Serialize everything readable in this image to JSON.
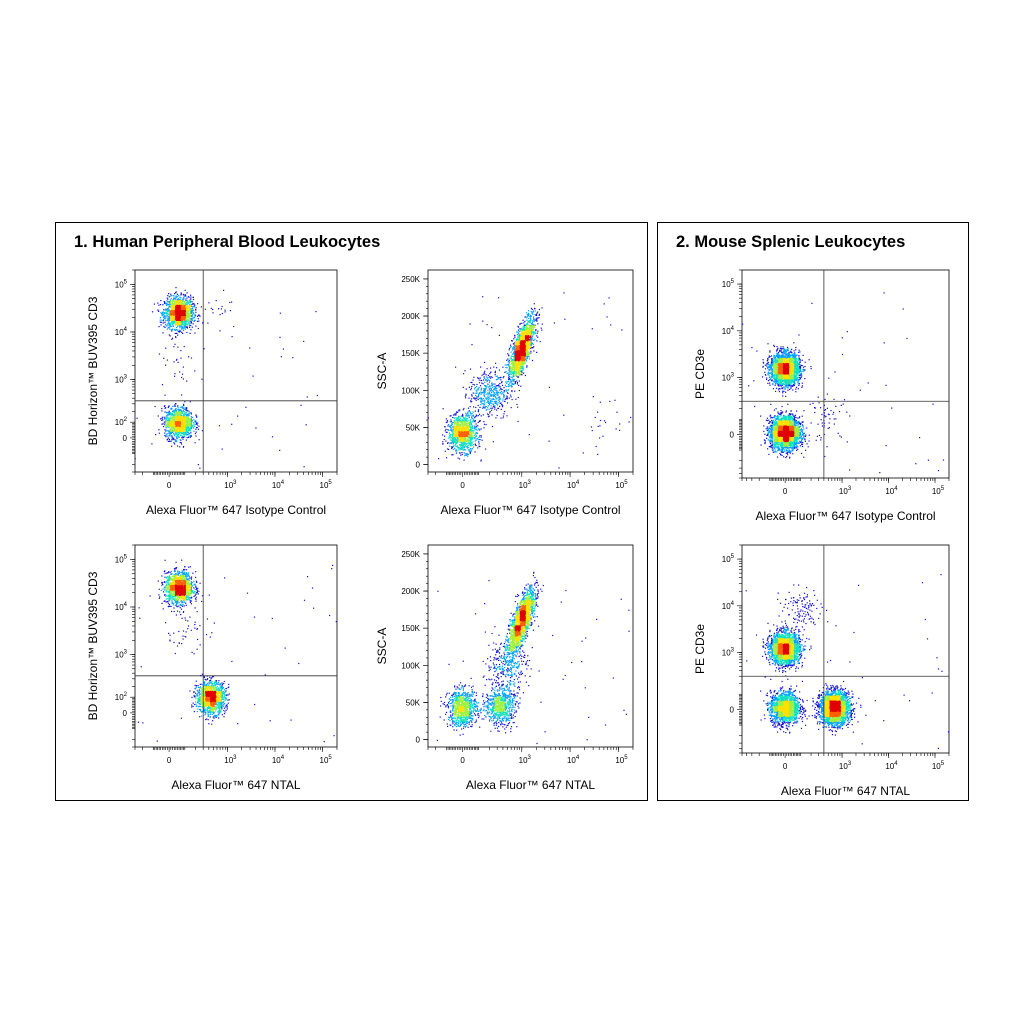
{
  "panels": [
    {
      "id": "panel1",
      "title": "1. Human Peripheral Blood Leukocytes"
    },
    {
      "id": "panel2",
      "title": "2. Mouse Splenic Leukocytes"
    }
  ],
  "palette": [
    "#1010d8",
    "#00a0ff",
    "#10e0c0",
    "#a0f040",
    "#ffe000",
    "#ff6000",
    "#e00000"
  ],
  "chart_data": [
    {
      "id": "p1a",
      "type": "scatter",
      "subtype": "density-dot-plot",
      "xlabel": "Alexa Fluor™ 647 Isotype Control",
      "ylabel": "BD Horizon™ BUV395 CD3",
      "x_scale": "biexponential",
      "y_scale": "biexponential",
      "x_ticks": [
        {
          "label": "0",
          "v": 0
        },
        {
          "label": "10",
          "sup": "3",
          "v": 1000
        },
        {
          "label": "10",
          "sup": "4",
          "v": 10000
        },
        {
          "label": "10",
          "sup": "5",
          "v": 100000
        }
      ],
      "y_ticks": [
        {
          "label": "0",
          "v": 0
        },
        {
          "label": "10",
          "sup": "2",
          "v": 100
        },
        {
          "label": "10",
          "sup": "3",
          "v": 1000
        },
        {
          "label": "10",
          "sup": "4",
          "v": 10000
        },
        {
          "label": "10",
          "sup": "5",
          "v": 100000
        }
      ],
      "xlim": [
        -300,
        200000
      ],
      "ylim": [
        -300,
        200000
      ],
      "gate": {
        "x": 300,
        "y": 350
      },
      "populations": [
        {
          "x": 60,
          "y": 25000,
          "n": 1600
        },
        {
          "x": 60,
          "y": 95,
          "n": 1200
        },
        {
          "x": 800,
          "y": 25000,
          "n": 20
        },
        {
          "x": 60,
          "y": 2000,
          "n": 25
        }
      ]
    },
    {
      "id": "p1b",
      "type": "scatter",
      "subtype": "density-dot-plot",
      "xlabel": "Alexa Fluor™ 647 Isotype Control",
      "ylabel": "SSC-A",
      "x_scale": "biexponential",
      "y_scale": "linear",
      "x_ticks": [
        {
          "label": "0",
          "v": 0
        },
        {
          "label": "10",
          "sup": "3",
          "v": 1000
        },
        {
          "label": "10",
          "sup": "4",
          "v": 10000
        },
        {
          "label": "10",
          "sup": "5",
          "v": 100000
        }
      ],
      "y_ticks": [
        {
          "label": "0",
          "v": 0
        },
        {
          "label": "50K",
          "v": 50000
        },
        {
          "label": "100K",
          "v": 100000
        },
        {
          "label": "150K",
          "v": 150000
        },
        {
          "label": "200K",
          "v": 200000
        },
        {
          "label": "250K",
          "v": 250000
        }
      ],
      "xlim": [
        -300,
        200000
      ],
      "ylim": [
        -10000,
        262000
      ],
      "populations": [
        {
          "x": 0,
          "y": 42000,
          "n": 1100
        },
        {
          "x": 1000,
          "y": 155000,
          "n": 1800
        },
        {
          "x": 200,
          "y": 95000,
          "n": 450
        },
        {
          "x": 50000,
          "y": 60000,
          "n": 20
        }
      ]
    },
    {
      "id": "p1c",
      "type": "scatter",
      "subtype": "density-dot-plot",
      "xlabel": "Alexa Fluor™ 647 NTAL",
      "ylabel": "BD Horizon™ BUV395 CD3",
      "x_scale": "biexponential",
      "y_scale": "biexponential",
      "x_ticks": [
        {
          "label": "0",
          "v": 0
        },
        {
          "label": "10",
          "sup": "3",
          "v": 1000
        },
        {
          "label": "10",
          "sup": "4",
          "v": 10000
        },
        {
          "label": "10",
          "sup": "5",
          "v": 100000
        }
      ],
      "y_ticks": [
        {
          "label": "0",
          "v": 0
        },
        {
          "label": "10",
          "sup": "2",
          "v": 100
        },
        {
          "label": "10",
          "sup": "3",
          "v": 1000
        },
        {
          "label": "10",
          "sup": "4",
          "v": 10000
        },
        {
          "label": "10",
          "sup": "5",
          "v": 100000
        }
      ],
      "xlim": [
        -300,
        200000
      ],
      "ylim": [
        -300,
        200000
      ],
      "gate": {
        "x": 300,
        "y": 350
      },
      "populations": [
        {
          "x": 60,
          "y": 25000,
          "n": 1400
        },
        {
          "x": 450,
          "y": 95,
          "n": 1300
        },
        {
          "x": 100,
          "y": 3000,
          "n": 40
        }
      ]
    },
    {
      "id": "p1d",
      "type": "scatter",
      "subtype": "density-dot-plot",
      "xlabel": "Alexa Fluor™ 647 NTAL",
      "ylabel": "SSC-A",
      "x_scale": "biexponential",
      "y_scale": "linear",
      "x_ticks": [
        {
          "label": "0",
          "v": 0
        },
        {
          "label": "10",
          "sup": "3",
          "v": 1000
        },
        {
          "label": "10",
          "sup": "4",
          "v": 10000
        },
        {
          "label": "10",
          "sup": "5",
          "v": 100000
        }
      ],
      "y_ticks": [
        {
          "label": "0",
          "v": 0
        },
        {
          "label": "50K",
          "v": 50000
        },
        {
          "label": "100K",
          "v": 100000
        },
        {
          "label": "150K",
          "v": 150000
        },
        {
          "label": "200K",
          "v": 200000
        },
        {
          "label": "250K",
          "v": 250000
        }
      ],
      "xlim": [
        -300,
        200000
      ],
      "ylim": [
        -10000,
        262000
      ],
      "populations": [
        {
          "x": 0,
          "y": 42000,
          "n": 900
        },
        {
          "x": 350,
          "y": 45000,
          "n": 700
        },
        {
          "x": 1000,
          "y": 160000,
          "n": 1800
        },
        {
          "x": 500,
          "y": 100000,
          "n": 300
        }
      ]
    },
    {
      "id": "p2a",
      "type": "scatter",
      "subtype": "density-dot-plot",
      "xlabel": "Alexa Fluor™ 647 Isotype Control",
      "ylabel": "PE CD3e",
      "x_scale": "biexponential",
      "y_scale": "biexponential",
      "x_ticks": [
        {
          "label": "0",
          "v": 0
        },
        {
          "label": "10",
          "sup": "3",
          "v": 1000
        },
        {
          "label": "10",
          "sup": "4",
          "v": 10000
        },
        {
          "label": "10",
          "sup": "5",
          "v": 100000
        }
      ],
      "y_ticks": [
        {
          "label": "0",
          "v": 0
        },
        {
          "label": "10",
          "sup": "3",
          "v": 1000
        },
        {
          "label": "10",
          "sup": "4",
          "v": 10000
        },
        {
          "label": "10",
          "sup": "5",
          "v": 100000
        }
      ],
      "xlim": [
        -500,
        200000
      ],
      "ylim": [
        -500,
        200000
      ],
      "gate": {
        "x": 400,
        "y": 300
      },
      "populations": [
        {
          "x": 0,
          "y": 1500,
          "n": 2400
        },
        {
          "x": 0,
          "y": 10,
          "n": 3000
        },
        {
          "x": 500,
          "y": 100,
          "n": 60
        }
      ]
    },
    {
      "id": "p2b",
      "type": "scatter",
      "subtype": "density-dot-plot",
      "xlabel": "Alexa Fluor™ 647 NTAL",
      "ylabel": "PE CD3e",
      "x_scale": "biexponential",
      "y_scale": "biexponential",
      "x_ticks": [
        {
          "label": "0",
          "v": 0
        },
        {
          "label": "10",
          "sup": "3",
          "v": 1000
        },
        {
          "label": "10",
          "sup": "4",
          "v": 10000
        },
        {
          "label": "10",
          "sup": "5",
          "v": 100000
        }
      ],
      "y_ticks": [
        {
          "label": "0",
          "v": 0
        },
        {
          "label": "10",
          "sup": "3",
          "v": 1000
        },
        {
          "label": "10",
          "sup": "4",
          "v": 10000
        },
        {
          "label": "10",
          "sup": "5",
          "v": 100000
        }
      ],
      "xlim": [
        -500,
        200000
      ],
      "ylim": [
        -500,
        200000
      ],
      "gate": {
        "x": 400,
        "y": 300
      },
      "populations": [
        {
          "x": 0,
          "y": 1200,
          "n": 2200
        },
        {
          "x": 0,
          "y": 10,
          "n": 1600
        },
        {
          "x": 700,
          "y": 10,
          "n": 2600
        },
        {
          "x": 100,
          "y": 8000,
          "n": 120
        }
      ]
    }
  ]
}
